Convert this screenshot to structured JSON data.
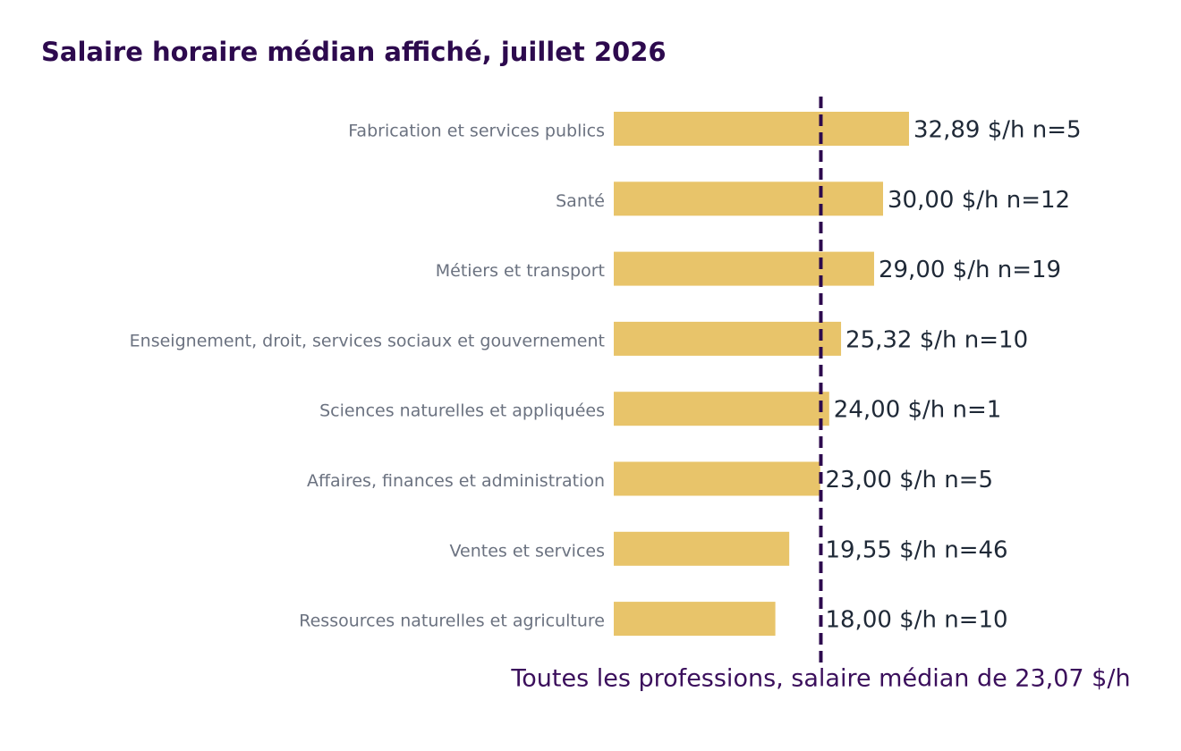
{
  "chart_data": {
    "type": "bar",
    "orientation": "horizontal",
    "title": "Salaire horaire médian affiché, juillet 2026",
    "categories": [
      "Fabrication et services publics",
      "Santé",
      "Métiers et transport",
      "Enseignement, droit, services sociaux et gouvernement",
      "Sciences naturelles et appliquées",
      "Affaires, finances et administration",
      "Ventes et services",
      "Ressources naturelles et agriculture"
    ],
    "values": [
      32.89,
      30.0,
      29.0,
      25.32,
      24.0,
      23.0,
      19.55,
      18.0
    ],
    "value_labels": [
      "32,89 $/h  n=5",
      "30,00 $/h  n=12",
      "29,00 $/h  n=19",
      "25,32 $/h  n=10",
      "24,00 $/h  n=1",
      "23,00 $/h  n=5",
      "19,55 $/h  n=46",
      "18,00 $/h  n=10"
    ],
    "color": "#e8c46a",
    "reference_line": {
      "value": 23.07,
      "label": "Toutes les professions, salaire médian de 23,07 $/h",
      "color": "#2d0a4e"
    }
  }
}
